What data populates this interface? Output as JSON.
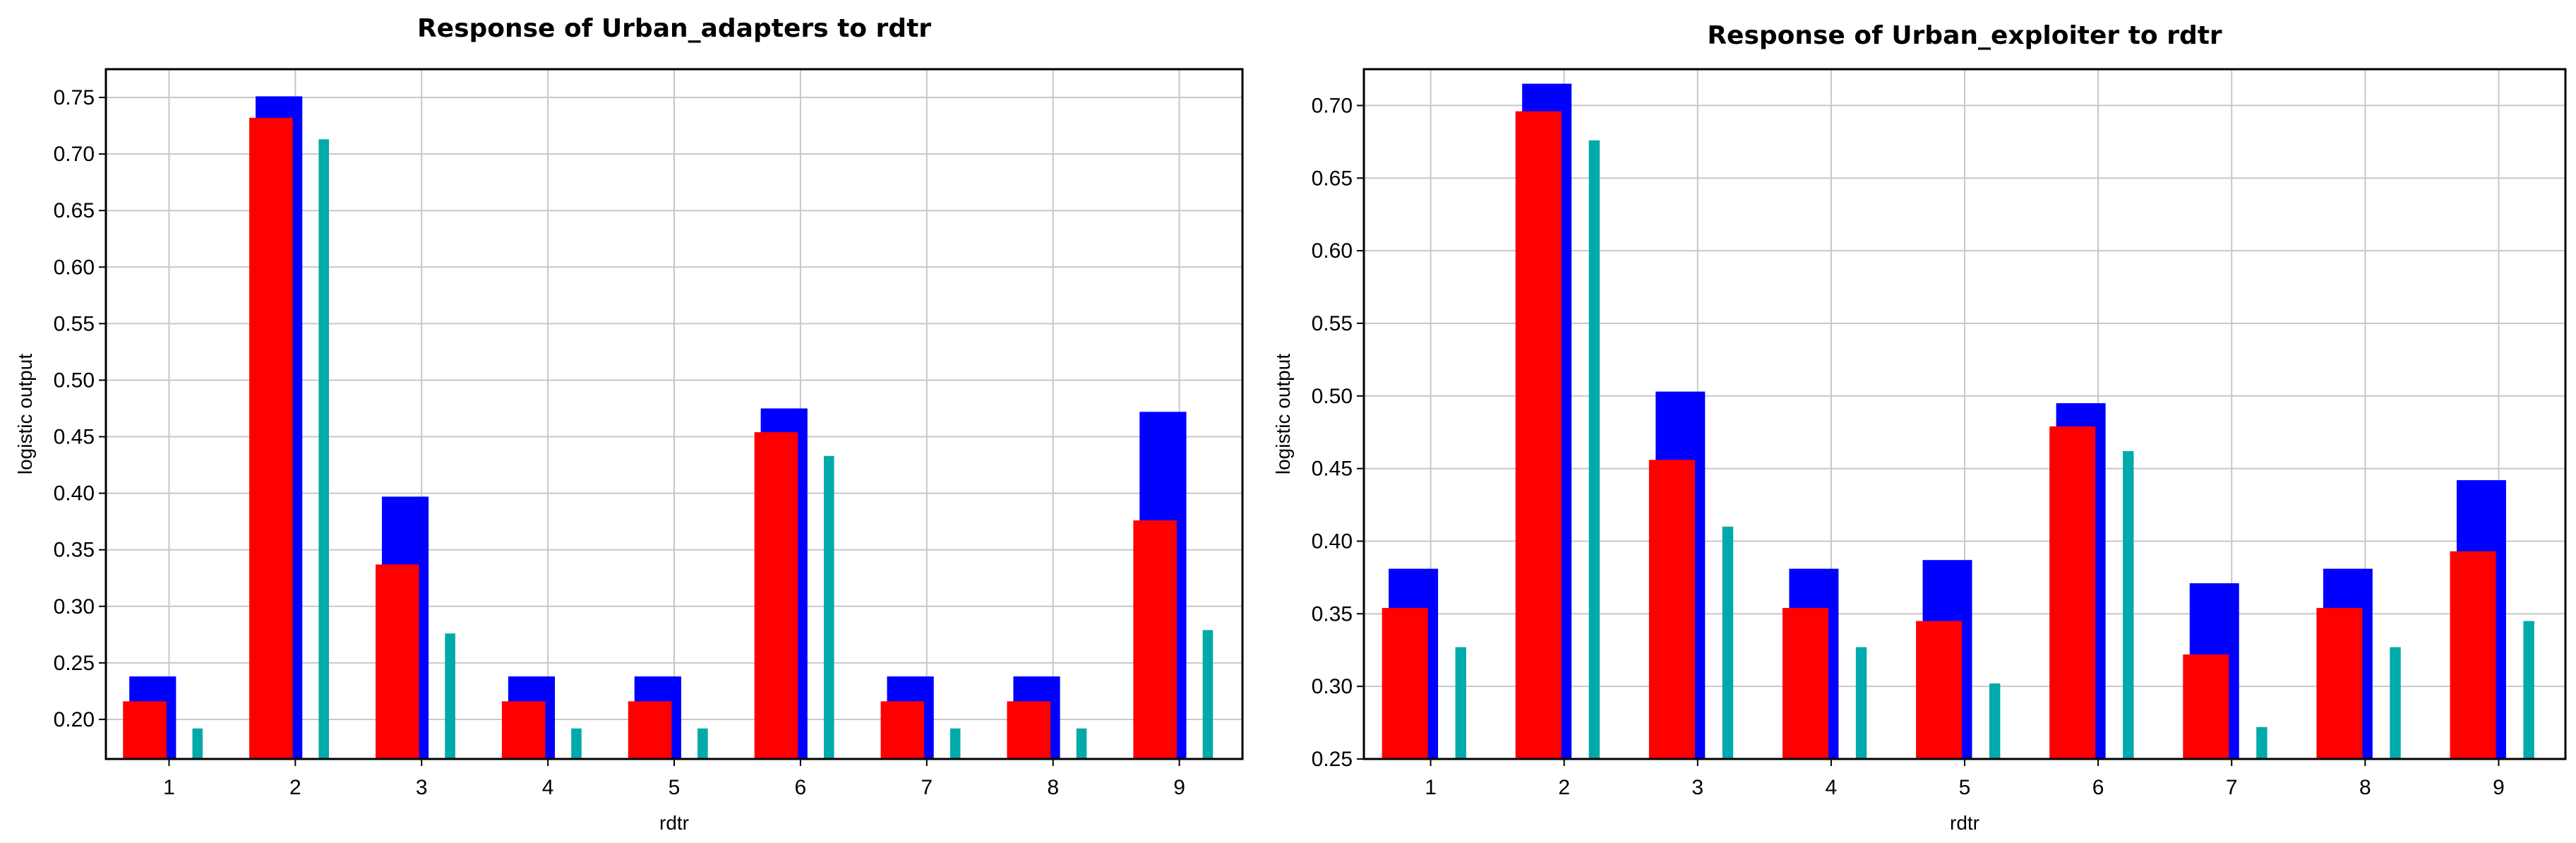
{
  "chart_data": [
    {
      "type": "bar",
      "title": "Response of Urban_adapters to rdtr",
      "xlabel": "rdtr",
      "ylabel": "logistic output",
      "categories": [
        "1",
        "2",
        "3",
        "4",
        "5",
        "6",
        "7",
        "8",
        "9"
      ],
      "ylim": [
        0.165,
        0.775
      ],
      "yticks": [
        "0.20",
        "0.25",
        "0.30",
        "0.35",
        "0.40",
        "0.45",
        "0.50",
        "0.55",
        "0.60",
        "0.65",
        "0.70",
        "0.75"
      ],
      "grid": true,
      "series": [
        {
          "color": "#0000ff",
          "values": [
            0.238,
            0.751,
            0.397,
            0.238,
            0.238,
            0.475,
            0.238,
            0.238,
            0.472
          ]
        },
        {
          "color": "#ff0000",
          "values": [
            0.216,
            0.732,
            0.337,
            0.216,
            0.216,
            0.454,
            0.216,
            0.216,
            0.376
          ]
        },
        {
          "color": "#00aaaa",
          "values": [
            0.192,
            0.713,
            0.276,
            0.192,
            0.192,
            0.433,
            0.192,
            0.192,
            0.279
          ]
        }
      ]
    },
    {
      "type": "bar",
      "title": "Response of Urban_exploiter to rdtr",
      "xlabel": "rdtr",
      "ylabel": "logistic output",
      "categories": [
        "1",
        "2",
        "3",
        "4",
        "5",
        "6",
        "7",
        "8",
        "9"
      ],
      "ylim": [
        0.25,
        0.725
      ],
      "yticks": [
        "0.25",
        "0.30",
        "0.35",
        "0.40",
        "0.45",
        "0.50",
        "0.55",
        "0.60",
        "0.65",
        "0.70"
      ],
      "grid": true,
      "series": [
        {
          "color": "#0000ff",
          "values": [
            0.381,
            0.715,
            0.503,
            0.381,
            0.387,
            0.495,
            0.371,
            0.381,
            0.442
          ]
        },
        {
          "color": "#ff0000",
          "values": [
            0.354,
            0.696,
            0.456,
            0.354,
            0.345,
            0.479,
            0.322,
            0.354,
            0.393
          ]
        },
        {
          "color": "#00aaaa",
          "values": [
            0.327,
            0.676,
            0.41,
            0.327,
            0.302,
            0.462,
            0.272,
            0.327,
            0.345
          ]
        }
      ]
    }
  ]
}
